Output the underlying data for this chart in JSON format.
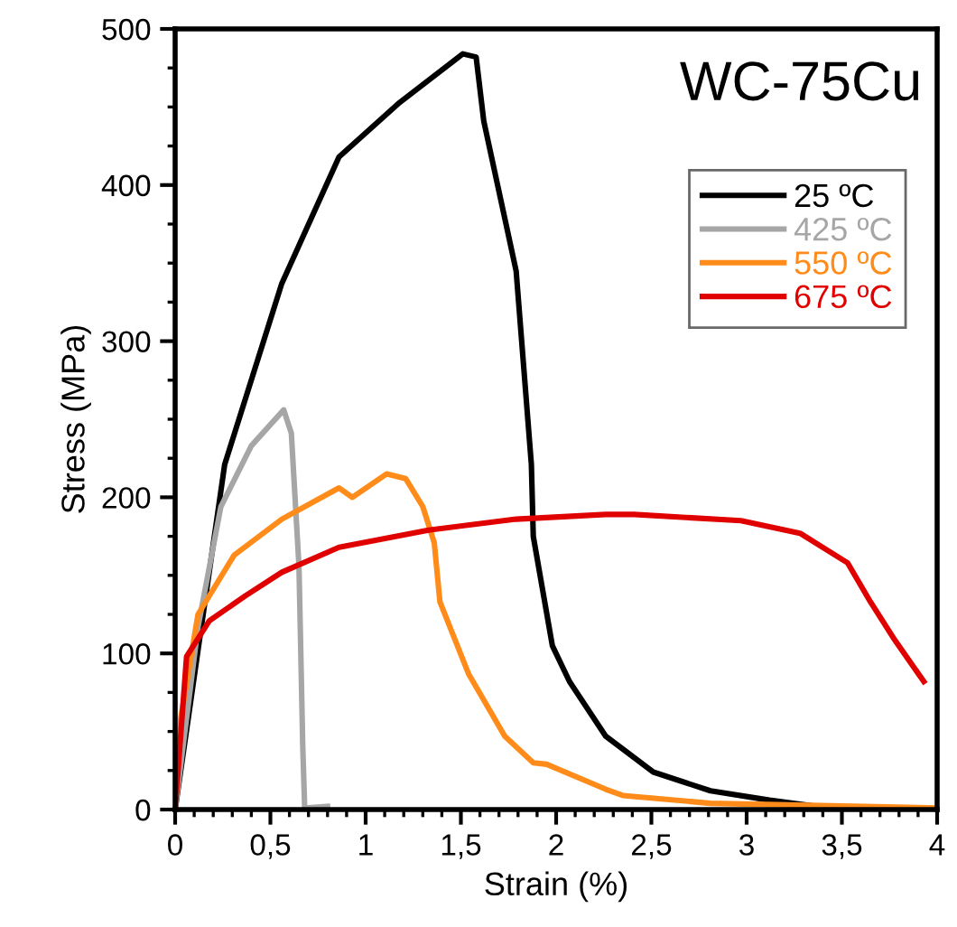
{
  "chart_data": {
    "type": "line",
    "title": "WC-75Cu",
    "xlabel": "Strain (%)",
    "ylabel": "Stress (MPa)",
    "xlim": [
      0,
      4
    ],
    "ylim": [
      0,
      500
    ],
    "xticks": [
      0,
      {
        "value": 0.5,
        "label": "0,5"
      },
      1,
      {
        "value": 1.5,
        "label": "1,5"
      },
      2,
      {
        "value": 2.5,
        "label": "2,5"
      },
      3,
      {
        "value": 3.5,
        "label": "3,5"
      },
      4
    ],
    "yticks": [
      0,
      100,
      200,
      300,
      400,
      500
    ],
    "grid": false,
    "legend": "top right",
    "marker": "none",
    "line_style": "solid",
    "series": [
      {
        "name": "25 ºC",
        "color": "#000000",
        "x": [
          0,
          0.26,
          0.49,
          0.56,
          0.86,
          1.17,
          1.51,
          1.58,
          1.62,
          1.79,
          1.87,
          1.88,
          1.98,
          2.07,
          2.26,
          2.51,
          2.81,
          3.12,
          3.43,
          3.6
        ],
        "values": [
          0,
          221,
          310,
          337,
          418,
          452,
          484,
          482,
          441,
          345,
          221,
          175,
          105,
          82,
          47,
          24,
          12,
          6,
          1,
          0
        ]
      },
      {
        "name": "425 ºC",
        "color": "#a6a6a6",
        "x": [
          0,
          0.12,
          0.24,
          0.4,
          0.57,
          0.61,
          0.65,
          0.67,
          0.68,
          0.8
        ],
        "values": [
          0,
          117,
          194,
          233,
          256,
          241,
          156,
          40,
          1,
          2
        ]
      },
      {
        "name": "550 ºC",
        "color": "#ff8c1a",
        "x": [
          0,
          0.03,
          0.12,
          0.31,
          0.56,
          0.86,
          0.93,
          1.11,
          1.21,
          1.3,
          1.36,
          1.39,
          1.54,
          1.73,
          1.88,
          1.95,
          2.26,
          2.35,
          2.81,
          4.0
        ],
        "values": [
          0,
          59,
          125,
          163,
          186,
          206,
          200,
          215,
          212,
          194,
          171,
          133,
          87,
          47,
          30,
          29,
          13,
          9,
          4,
          1
        ]
      },
      {
        "name": "675 ºC",
        "color": "#e00000",
        "x": [
          0,
          0.06,
          0.18,
          0.37,
          0.56,
          0.86,
          1.33,
          1.79,
          2.26,
          2.41,
          2.97,
          3.28,
          3.53,
          3.65,
          3.77,
          3.93
        ],
        "values": [
          0,
          98,
          121,
          137,
          152,
          168,
          179,
          186,
          189,
          189,
          185,
          177,
          158,
          133,
          110,
          82
        ]
      }
    ]
  }
}
